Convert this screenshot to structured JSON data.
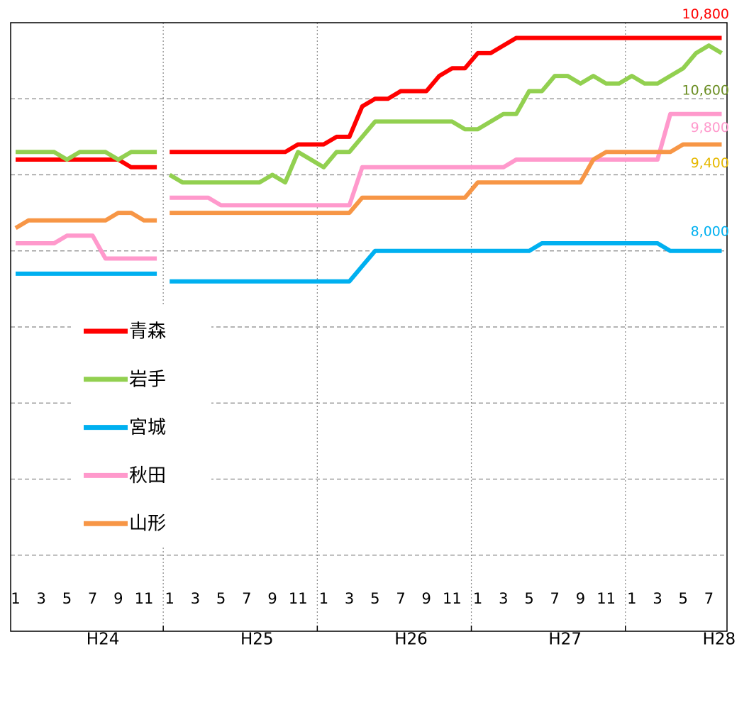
{
  "chart_data": {
    "type": "line",
    "categories": [
      "1",
      null,
      "3",
      null,
      "5",
      null,
      "7",
      null,
      "9",
      null,
      "11",
      null,
      null,
      "1",
      null,
      "3",
      null,
      "5",
      null,
      "7",
      null,
      "9",
      null,
      "11",
      null,
      "1",
      null,
      "3",
      null,
      "5",
      null,
      "7",
      null,
      "9",
      null,
      "11",
      null,
      "1",
      null,
      "3",
      null,
      "5",
      null,
      "7",
      null,
      "9",
      null,
      "11",
      null,
      "1",
      null,
      "3",
      null,
      "5",
      null,
      "7",
      null
    ],
    "years": [
      "H24",
      "H25",
      "H26",
      "H27",
      "H28"
    ],
    "series": [
      {
        "name": "青森",
        "color": "#ff0000",
        "label_color": "#ff0000",
        "values": [
          9200,
          9200,
          9200,
          9200,
          9200,
          9200,
          9200,
          9200,
          9200,
          9100,
          9100,
          9100,
          null,
          9300,
          9300,
          9300,
          9300,
          9300,
          9300,
          9300,
          9300,
          9300,
          9300,
          9400,
          9400,
          9400,
          9500,
          9500,
          9900,
          10000,
          10000,
          10100,
          10100,
          10100,
          10300,
          10400,
          10400,
          10600,
          10600,
          10700,
          10800,
          10800,
          10800,
          10800,
          10800,
          10800,
          10800,
          10800,
          10800,
          10800,
          10800,
          10800,
          10800,
          10800,
          10800,
          10800,
          10800
        ],
        "value_labels": [
          null,
          null,
          null,
          null,
          null,
          null,
          null,
          null,
          null,
          null,
          null,
          null,
          null,
          null,
          null,
          null,
          null,
          null,
          null,
          null,
          null,
          null,
          null,
          null,
          null,
          null,
          null,
          null,
          null,
          null,
          null,
          null,
          null,
          null,
          null,
          null,
          null,
          null,
          null,
          null,
          null,
          null,
          null,
          null,
          null,
          null,
          null,
          null,
          null,
          null,
          null,
          null,
          null,
          null,
          null,
          null,
          "10,800"
        ]
      },
      {
        "name": "岩手",
        "color": "#92d050",
        "label_color": "#6b8e23",
        "values": [
          9300,
          9300,
          9300,
          9300,
          9200,
          9300,
          9300,
          9300,
          9200,
          9300,
          9300,
          9300,
          null,
          9000,
          8900,
          8900,
          8900,
          8900,
          8900,
          8900,
          8900,
          9000,
          8900,
          9300,
          9200,
          9100,
          9300,
          9300,
          9500,
          9700,
          9700,
          9700,
          9700,
          9700,
          9700,
          9700,
          9600,
          9600,
          9700,
          9800,
          9800,
          10100,
          10100,
          10300,
          10300,
          10200,
          10300,
          10200,
          10200,
          10300,
          10200,
          10200,
          10300,
          10400,
          10600,
          10700,
          10600
        ],
        "value_labels": [
          null,
          null,
          null,
          null,
          null,
          null,
          null,
          null,
          null,
          null,
          null,
          null,
          null,
          null,
          null,
          null,
          null,
          null,
          null,
          null,
          null,
          null,
          null,
          null,
          null,
          null,
          null,
          null,
          null,
          null,
          null,
          null,
          null,
          null,
          null,
          null,
          null,
          null,
          null,
          null,
          null,
          null,
          null,
          null,
          null,
          null,
          null,
          null,
          null,
          null,
          null,
          null,
          null,
          null,
          null,
          null,
          "10,600"
        ]
      },
      {
        "name": "宮城",
        "color": "#00b0f0",
        "label_color": "#00b0f0",
        "values": [
          7700,
          7700,
          7700,
          7700,
          7700,
          7700,
          7700,
          7700,
          7700,
          7700,
          7700,
          7700,
          null,
          7600,
          7600,
          7600,
          7600,
          7600,
          7600,
          7600,
          7600,
          7600,
          7600,
          7600,
          7600,
          7600,
          7600,
          7600,
          7800,
          8000,
          8000,
          8000,
          8000,
          8000,
          8000,
          8000,
          8000,
          8000,
          8000,
          8000,
          8000,
          8000,
          8100,
          8100,
          8100,
          8100,
          8100,
          8100,
          8100,
          8100,
          8100,
          8100,
          8000,
          8000,
          8000,
          8000,
          8000
        ],
        "value_labels": [
          null,
          null,
          null,
          null,
          null,
          null,
          null,
          null,
          null,
          null,
          null,
          null,
          null,
          null,
          null,
          null,
          null,
          null,
          null,
          null,
          null,
          null,
          null,
          null,
          null,
          null,
          null,
          null,
          null,
          null,
          null,
          null,
          null,
          null,
          null,
          null,
          null,
          null,
          null,
          null,
          null,
          null,
          null,
          null,
          null,
          null,
          null,
          null,
          null,
          null,
          null,
          null,
          null,
          null,
          null,
          null,
          "8,000"
        ]
      },
      {
        "name": "秋田",
        "color": "#ff99cc",
        "label_color": "#ff99cc",
        "values": [
          8100,
          8100,
          8100,
          8100,
          8200,
          8200,
          8200,
          7900,
          7900,
          7900,
          7900,
          7900,
          null,
          8700,
          8700,
          8700,
          8700,
          8600,
          8600,
          8600,
          8600,
          8600,
          8600,
          8600,
          8600,
          8600,
          8600,
          8600,
          9100,
          9100,
          9100,
          9100,
          9100,
          9100,
          9100,
          9100,
          9100,
          9100,
          9100,
          9100,
          9200,
          9200,
          9200,
          9200,
          9200,
          9200,
          9200,
          9200,
          9200,
          9200,
          9200,
          9200,
          9800,
          9800,
          9800,
          9800,
          9800
        ],
        "value_labels": [
          null,
          null,
          null,
          null,
          null,
          null,
          null,
          null,
          null,
          null,
          null,
          null,
          null,
          null,
          null,
          null,
          null,
          null,
          null,
          null,
          null,
          null,
          null,
          null,
          null,
          null,
          null,
          null,
          null,
          null,
          null,
          null,
          null,
          null,
          null,
          null,
          null,
          null,
          null,
          null,
          null,
          null,
          null,
          null,
          null,
          null,
          null,
          null,
          null,
          null,
          null,
          null,
          null,
          null,
          null,
          null,
          "9,800"
        ]
      },
      {
        "name": "山形",
        "color": "#f79646",
        "label_color": "#e6b800",
        "values": [
          8300,
          8400,
          8400,
          8400,
          8400,
          8400,
          8400,
          8400,
          8500,
          8500,
          8400,
          8400,
          null,
          8500,
          8500,
          8500,
          8500,
          8500,
          8500,
          8500,
          8500,
          8500,
          8500,
          8500,
          8500,
          8500,
          8500,
          8500,
          8700,
          8700,
          8700,
          8700,
          8700,
          8700,
          8700,
          8700,
          8700,
          8900,
          8900,
          8900,
          8900,
          8900,
          8900,
          8900,
          8900,
          8900,
          9200,
          9300,
          9300,
          9300,
          9300,
          9300,
          9300,
          9400,
          9400,
          9400,
          9400
        ],
        "value_labels": [
          null,
          null,
          null,
          null,
          null,
          null,
          null,
          null,
          null,
          null,
          null,
          null,
          null,
          null,
          null,
          null,
          null,
          null,
          null,
          null,
          null,
          null,
          null,
          null,
          null,
          null,
          null,
          null,
          null,
          null,
          null,
          null,
          null,
          null,
          null,
          null,
          null,
          null,
          null,
          null,
          null,
          null,
          null,
          null,
          null,
          null,
          null,
          null,
          null,
          null,
          null,
          null,
          null,
          null,
          null,
          null,
          "9,400"
        ]
      }
    ],
    "ylim": [
      3000,
      11000
    ],
    "yticks": [
      3000,
      4000,
      5000,
      6000,
      7000,
      8000,
      9000,
      10000,
      11000
    ],
    "grid": true
  }
}
